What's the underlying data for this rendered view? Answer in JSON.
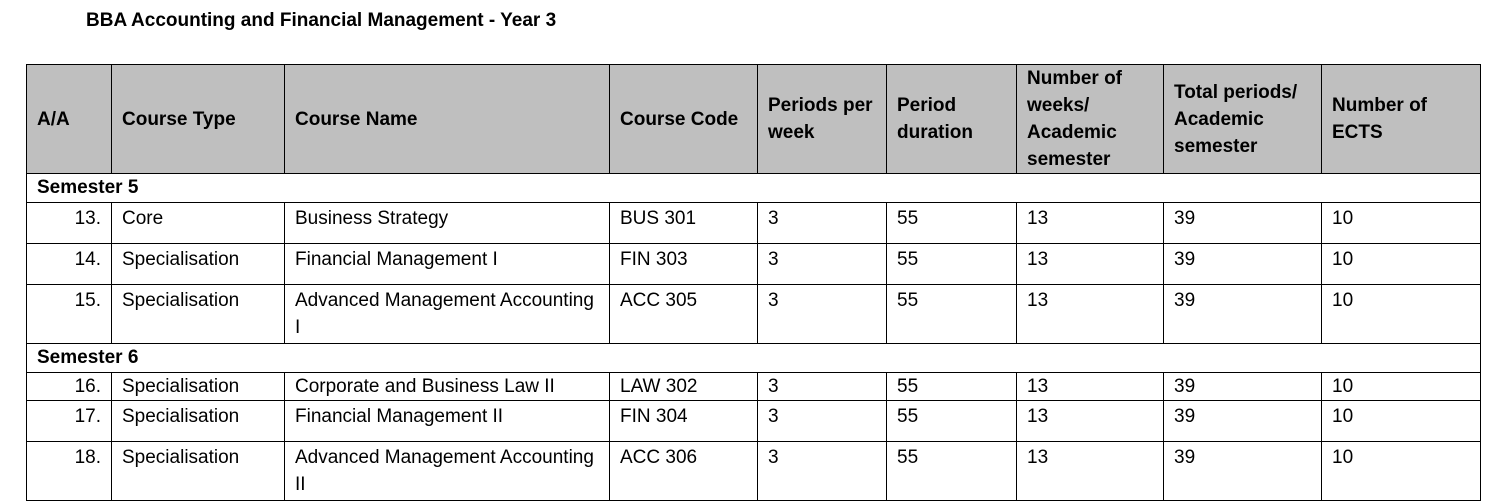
{
  "title": "BBA Accounting and Financial Management - Year 3",
  "headers": {
    "aa": "A/A",
    "course_type": "Course Type",
    "course_name": "Course Name",
    "course_code": "Course Code",
    "periods_per_week": "Periods per week",
    "period_duration": "Period duration",
    "weeks_per_semester": "Number of weeks/ Academic semester",
    "total_periods": "Total periods/ Academic semester",
    "ects": "Number of ECTS"
  },
  "semesters": [
    {
      "label": "Semester 5",
      "rows": [
        {
          "aa": "13.",
          "type": "Core",
          "name": "Business Strategy",
          "code": "BUS 301",
          "ppw": "3",
          "dur": "55",
          "weeks": "13",
          "total": "39",
          "ects": "10"
        },
        {
          "aa": "14.",
          "type": "Specialisation",
          "name": "Financial Management I",
          "code": "FIN 303",
          "ppw": "3",
          "dur": "55",
          "weeks": "13",
          "total": "39",
          "ects": "10"
        },
        {
          "aa": "15.",
          "type": "Specialisation",
          "name": "Advanced Management Accounting I",
          "code": "ACC 305",
          "ppw": "3",
          "dur": "55",
          "weeks": "13",
          "total": "39",
          "ects": "10"
        }
      ]
    },
    {
      "label": "Semester 6",
      "rows": [
        {
          "aa": "16.",
          "type": "Specialisation",
          "name": "Corporate and Business Law II",
          "code": "LAW 302",
          "ppw": "3",
          "dur": "55",
          "weeks": "13",
          "total": "39",
          "ects": "10"
        },
        {
          "aa": "17.",
          "type": "Specialisation",
          "name": "Financial Management II",
          "code": "FIN 304",
          "ppw": "3",
          "dur": "55",
          "weeks": "13",
          "total": "39",
          "ects": "10"
        },
        {
          "aa": "18.",
          "type": "Specialisation",
          "name": "Advanced Management Accounting II",
          "code": "ACC 306",
          "ppw": "3",
          "dur": "55",
          "weeks": "13",
          "total": "39",
          "ects": "10"
        }
      ]
    }
  ]
}
